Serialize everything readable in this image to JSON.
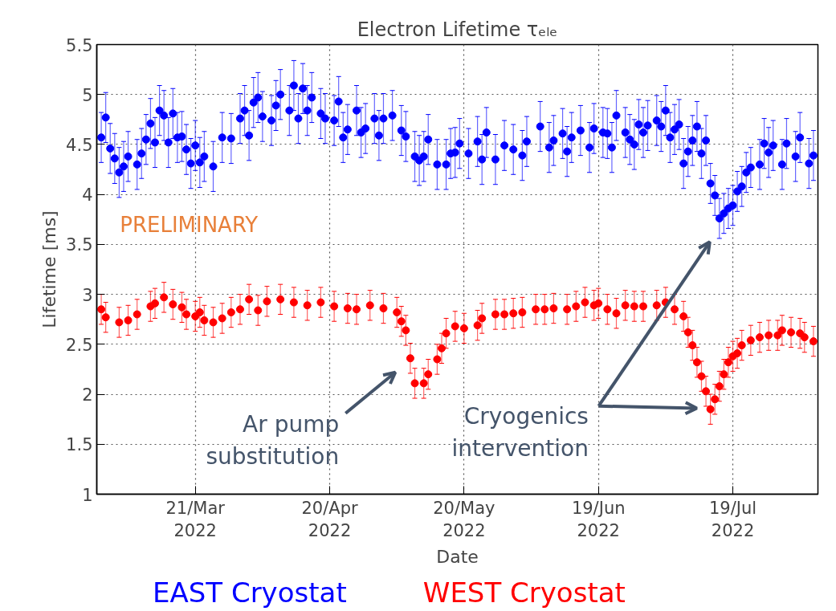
{
  "chart_data": {
    "type": "scatter",
    "title": "Electron Lifetime τₑₗₑ",
    "xlabel": "Date",
    "ylabel": "Lifetime [ms]",
    "xlim": [
      "2022-02-27",
      "2022-08-07"
    ],
    "ylim": [
      1,
      5.5
    ],
    "xticks": [
      {
        "value": "2022-03-21",
        "label": "21/Mar\n2022"
      },
      {
        "value": "2022-04-20",
        "label": "20/Apr\n2022"
      },
      {
        "value": "2022-05-20",
        "label": "20/May\n2022"
      },
      {
        "value": "2022-06-19",
        "label": "19/Jun\n2022"
      },
      {
        "value": "2022-07-19",
        "label": "19/Jul\n2022"
      }
    ],
    "yticks": [
      1,
      1.5,
      2,
      2.5,
      3,
      3.5,
      4,
      4.5,
      5,
      5.5
    ],
    "grid": true,
    "marker": "circle",
    "legend": "bottom",
    "series": [
      {
        "name": "EAST Cryostat",
        "color": "#0000ff",
        "x": [
          "2022-02-28",
          "2022-03-01",
          "2022-03-02",
          "2022-03-03",
          "2022-03-04",
          "2022-03-05",
          "2022-03-06",
          "2022-03-08",
          "2022-03-09",
          "2022-03-10",
          "2022-03-11",
          "2022-03-12",
          "2022-03-13",
          "2022-03-14",
          "2022-03-15",
          "2022-03-16",
          "2022-03-17",
          "2022-03-18",
          "2022-03-19",
          "2022-03-20",
          "2022-03-21",
          "2022-03-22",
          "2022-03-23",
          "2022-03-25",
          "2022-03-27",
          "2022-03-29",
          "2022-03-31",
          "2022-04-01",
          "2022-04-02",
          "2022-04-03",
          "2022-04-04",
          "2022-04-05",
          "2022-04-07",
          "2022-04-08",
          "2022-04-09",
          "2022-04-11",
          "2022-04-12",
          "2022-04-13",
          "2022-04-14",
          "2022-04-15",
          "2022-04-16",
          "2022-04-18",
          "2022-04-19",
          "2022-04-21",
          "2022-04-22",
          "2022-04-23",
          "2022-04-24",
          "2022-04-26",
          "2022-04-27",
          "2022-04-28",
          "2022-04-30",
          "2022-05-01",
          "2022-05-02",
          "2022-05-04",
          "2022-05-06",
          "2022-05-07",
          "2022-05-09",
          "2022-05-10",
          "2022-05-11",
          "2022-05-12",
          "2022-05-14",
          "2022-05-16",
          "2022-05-17",
          "2022-05-18",
          "2022-05-19",
          "2022-05-21",
          "2022-05-23",
          "2022-05-24",
          "2022-05-25",
          "2022-05-27",
          "2022-05-29",
          "2022-05-31",
          "2022-06-02",
          "2022-06-03",
          "2022-06-06",
          "2022-06-08",
          "2022-06-09",
          "2022-06-11",
          "2022-06-12",
          "2022-06-13",
          "2022-06-15",
          "2022-06-17",
          "2022-06-18",
          "2022-06-20",
          "2022-06-21",
          "2022-06-22",
          "2022-06-23",
          "2022-06-25",
          "2022-06-26",
          "2022-06-27",
          "2022-06-28",
          "2022-06-29",
          "2022-06-30",
          "2022-07-02",
          "2022-07-03",
          "2022-07-04",
          "2022-07-05",
          "2022-07-06",
          "2022-07-07",
          "2022-07-08",
          "2022-07-09",
          "2022-07-10",
          "2022-07-11",
          "2022-07-12",
          "2022-07-13",
          "2022-07-14",
          "2022-07-15",
          "2022-07-16",
          "2022-07-17",
          "2022-07-18",
          "2022-07-19",
          "2022-07-20",
          "2022-07-21",
          "2022-07-22",
          "2022-07-23",
          "2022-07-25",
          "2022-07-26",
          "2022-07-27",
          "2022-07-28",
          "2022-07-30",
          "2022-07-31",
          "2022-08-02",
          "2022-08-03",
          "2022-08-05",
          "2022-08-06"
        ],
        "values": [
          4.57,
          4.77,
          4.46,
          4.36,
          4.22,
          4.28,
          4.38,
          4.3,
          4.41,
          4.55,
          4.71,
          4.52,
          4.84,
          4.79,
          4.52,
          4.81,
          4.57,
          4.58,
          4.45,
          4.31,
          4.49,
          4.32,
          4.38,
          4.28,
          4.57,
          4.56,
          4.76,
          4.84,
          4.59,
          4.92,
          4.97,
          4.78,
          4.74,
          4.89,
          5.0,
          4.84,
          5.09,
          4.76,
          5.06,
          4.84,
          4.97,
          4.81,
          4.76,
          4.74,
          4.93,
          4.57,
          4.65,
          4.84,
          4.62,
          4.66,
          4.76,
          4.59,
          4.76,
          4.79,
          4.64,
          4.58,
          4.38,
          4.34,
          4.38,
          4.55,
          4.3,
          4.3,
          4.41,
          4.42,
          4.51,
          4.41,
          4.53,
          4.35,
          4.62,
          4.35,
          4.49,
          4.45,
          4.39,
          4.53,
          4.68,
          4.47,
          4.54,
          4.61,
          4.43,
          4.57,
          4.64,
          4.47,
          4.66,
          4.62,
          4.61,
          4.47,
          4.79,
          4.62,
          4.55,
          4.5,
          4.7,
          4.62,
          4.69,
          4.74,
          4.68,
          4.84,
          4.57,
          4.65,
          4.7,
          4.31,
          4.43,
          4.54,
          4.68,
          4.41,
          4.54,
          4.11,
          3.99,
          3.76,
          3.81,
          3.86,
          3.89,
          4.03,
          4.08,
          4.22,
          4.27,
          4.3,
          4.51,
          4.42,
          4.49,
          4.3,
          4.51,
          4.38,
          4.57,
          4.31,
          4.39
        ],
        "errors": [
          0.25,
          0.25,
          0.25,
          0.25,
          0.25,
          0.25,
          0.25,
          0.25,
          0.25,
          0.25,
          0.25,
          0.25,
          0.25,
          0.25,
          0.25,
          0.25,
          0.25,
          0.25,
          0.25,
          0.25,
          0.25,
          0.25,
          0.25,
          0.25,
          0.25,
          0.25,
          0.25,
          0.25,
          0.25,
          0.25,
          0.25,
          0.25,
          0.25,
          0.25,
          0.25,
          0.25,
          0.25,
          0.25,
          0.25,
          0.25,
          0.25,
          0.25,
          0.25,
          0.25,
          0.25,
          0.25,
          0.25,
          0.25,
          0.25,
          0.25,
          0.25,
          0.25,
          0.25,
          0.25,
          0.25,
          0.25,
          0.25,
          0.25,
          0.25,
          0.25,
          0.25,
          0.25,
          0.25,
          0.25,
          0.25,
          0.25,
          0.25,
          0.25,
          0.25,
          0.25,
          0.25,
          0.25,
          0.25,
          0.25,
          0.25,
          0.25,
          0.25,
          0.25,
          0.25,
          0.25,
          0.25,
          0.25,
          0.25,
          0.25,
          0.25,
          0.25,
          0.25,
          0.25,
          0.25,
          0.25,
          0.25,
          0.25,
          0.25,
          0.25,
          0.25,
          0.25,
          0.25,
          0.25,
          0.25,
          0.25,
          0.25,
          0.25,
          0.25,
          0.25,
          0.25,
          0.2,
          0.2,
          0.2,
          0.2,
          0.2,
          0.2,
          0.2,
          0.2,
          0.2,
          0.2,
          0.25,
          0.25,
          0.25,
          0.25,
          0.25,
          0.25,
          0.25,
          0.25,
          0.25,
          0.25
        ]
      },
      {
        "name": "WEST Cryostat",
        "color": "#ff0000",
        "x": [
          "2022-02-28",
          "2022-03-01",
          "2022-03-04",
          "2022-03-06",
          "2022-03-08",
          "2022-03-11",
          "2022-03-12",
          "2022-03-14",
          "2022-03-16",
          "2022-03-18",
          "2022-03-19",
          "2022-03-21",
          "2022-03-22",
          "2022-03-23",
          "2022-03-25",
          "2022-03-27",
          "2022-03-29",
          "2022-03-31",
          "2022-04-02",
          "2022-04-04",
          "2022-04-06",
          "2022-04-09",
          "2022-04-12",
          "2022-04-15",
          "2022-04-18",
          "2022-04-21",
          "2022-04-24",
          "2022-04-26",
          "2022-04-29",
          "2022-05-02",
          "2022-05-05",
          "2022-05-06",
          "2022-05-07",
          "2022-05-08",
          "2022-05-09",
          "2022-05-11",
          "2022-05-12",
          "2022-05-14",
          "2022-05-15",
          "2022-05-16",
          "2022-05-18",
          "2022-05-20",
          "2022-05-23",
          "2022-05-24",
          "2022-05-27",
          "2022-05-29",
          "2022-05-31",
          "2022-06-02",
          "2022-06-05",
          "2022-06-07",
          "2022-06-09",
          "2022-06-12",
          "2022-06-14",
          "2022-06-16",
          "2022-06-18",
          "2022-06-19",
          "2022-06-21",
          "2022-06-23",
          "2022-06-25",
          "2022-06-27",
          "2022-06-29",
          "2022-07-02",
          "2022-07-04",
          "2022-07-06",
          "2022-07-08",
          "2022-07-09",
          "2022-07-10",
          "2022-07-11",
          "2022-07-12",
          "2022-07-13",
          "2022-07-14",
          "2022-07-15",
          "2022-07-16",
          "2022-07-17",
          "2022-07-18",
          "2022-07-19",
          "2022-07-20",
          "2022-07-21",
          "2022-07-23",
          "2022-07-25",
          "2022-07-27",
          "2022-07-29",
          "2022-07-30",
          "2022-08-01",
          "2022-08-03",
          "2022-08-04",
          "2022-08-06"
        ],
        "values": [
          2.85,
          2.77,
          2.72,
          2.74,
          2.8,
          2.88,
          2.91,
          2.97,
          2.9,
          2.87,
          2.8,
          2.78,
          2.82,
          2.74,
          2.72,
          2.76,
          2.82,
          2.85,
          2.95,
          2.84,
          2.93,
          2.95,
          2.92,
          2.89,
          2.92,
          2.88,
          2.86,
          2.85,
          2.89,
          2.86,
          2.82,
          2.73,
          2.64,
          2.36,
          2.11,
          2.11,
          2.2,
          2.35,
          2.46,
          2.61,
          2.68,
          2.66,
          2.69,
          2.76,
          2.8,
          2.8,
          2.81,
          2.82,
          2.85,
          2.85,
          2.86,
          2.85,
          2.88,
          2.92,
          2.89,
          2.91,
          2.85,
          2.81,
          2.89,
          2.88,
          2.88,
          2.89,
          2.92,
          2.85,
          2.78,
          2.62,
          2.49,
          2.32,
          2.18,
          2.03,
          1.85,
          1.95,
          2.08,
          2.2,
          2.32,
          2.38,
          2.41,
          2.49,
          2.54,
          2.57,
          2.59,
          2.59,
          2.64,
          2.62,
          2.61,
          2.57,
          2.53
        ],
        "errors": [
          0.15,
          0.15,
          0.15,
          0.15,
          0.15,
          0.15,
          0.15,
          0.15,
          0.15,
          0.15,
          0.15,
          0.15,
          0.15,
          0.15,
          0.15,
          0.15,
          0.15,
          0.15,
          0.15,
          0.15,
          0.15,
          0.15,
          0.15,
          0.15,
          0.15,
          0.15,
          0.15,
          0.15,
          0.15,
          0.15,
          0.15,
          0.15,
          0.15,
          0.15,
          0.15,
          0.15,
          0.15,
          0.15,
          0.15,
          0.15,
          0.15,
          0.15,
          0.15,
          0.15,
          0.15,
          0.15,
          0.15,
          0.15,
          0.15,
          0.15,
          0.15,
          0.15,
          0.15,
          0.15,
          0.15,
          0.15,
          0.15,
          0.15,
          0.15,
          0.15,
          0.15,
          0.15,
          0.15,
          0.15,
          0.15,
          0.15,
          0.15,
          0.15,
          0.15,
          0.15,
          0.15,
          0.15,
          0.15,
          0.15,
          0.15,
          0.15,
          0.15,
          0.15,
          0.15,
          0.15,
          0.15,
          0.15,
          0.15,
          0.15,
          0.15,
          0.15,
          0.15
        ]
      }
    ],
    "annotations": [
      "PRELIMINARY",
      "Ar pump\nsubstitution",
      "Cryogenics\nintervention"
    ]
  }
}
